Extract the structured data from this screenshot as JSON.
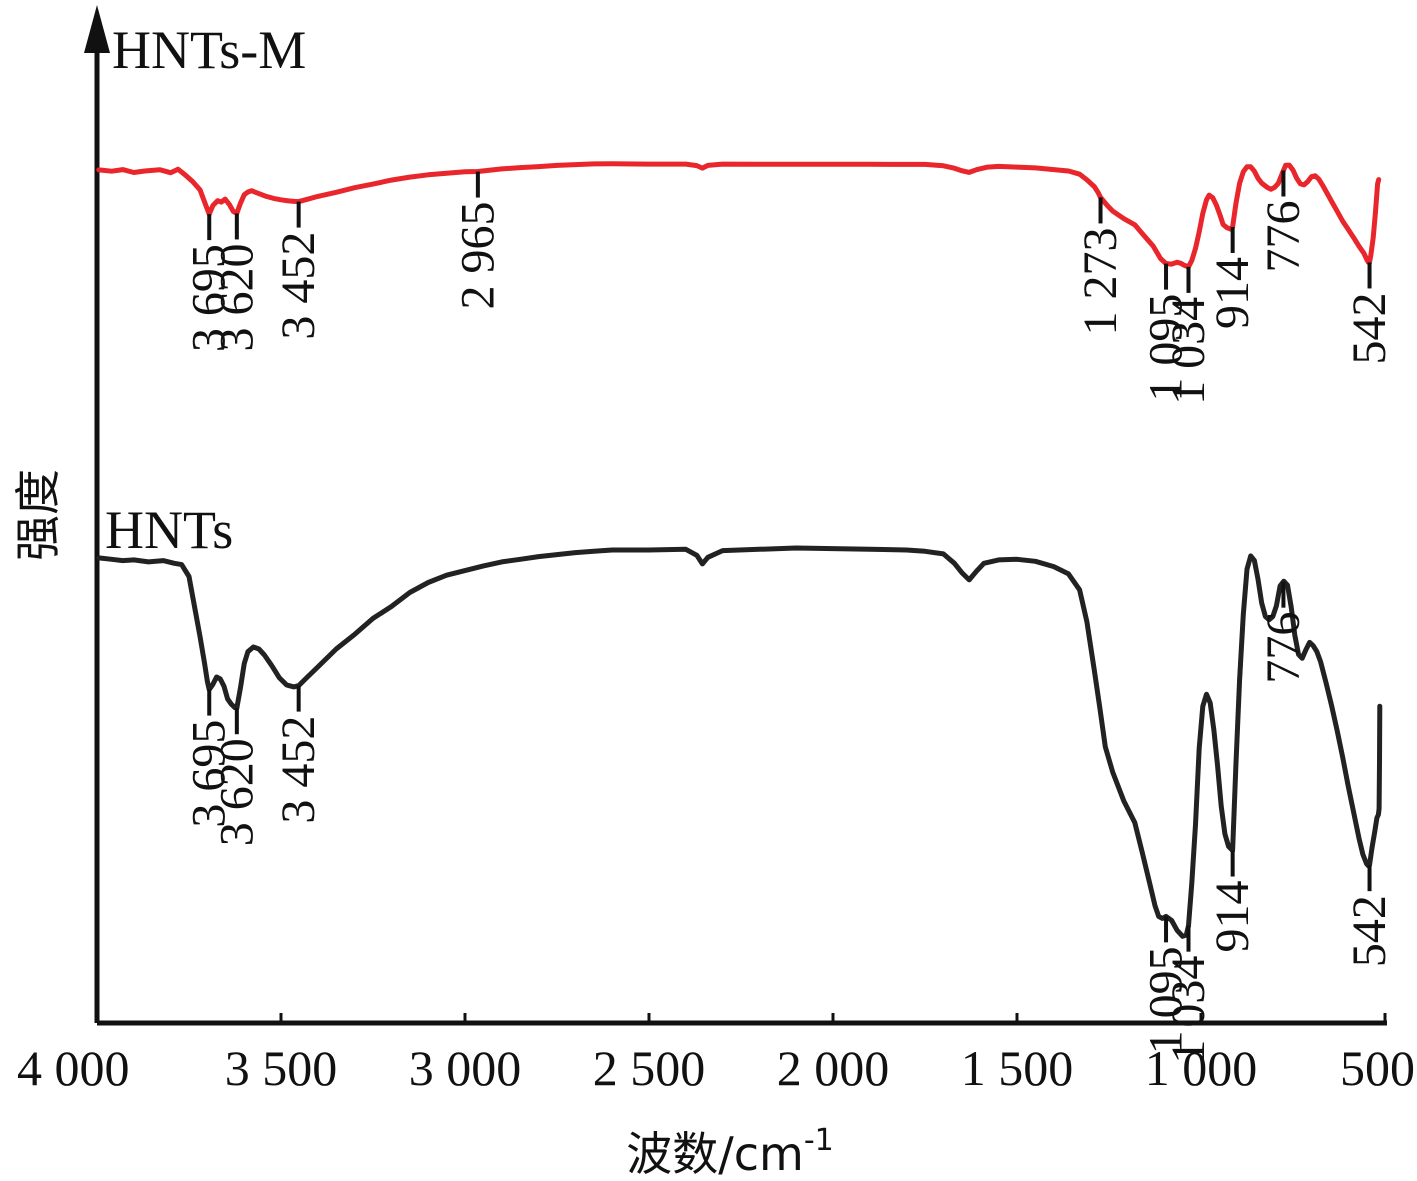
{
  "chart_data": {
    "type": "line",
    "xlabel": "波数/cm",
    "xlabel_sup": "-1",
    "ylabel": "强度",
    "xlim": [
      4000,
      500
    ],
    "x_reversed": true,
    "ylim": [
      0,
      100
    ],
    "y_ticks": "none",
    "grid": false,
    "x_ticks": [
      {
        "value": 4000,
        "label": "4 000"
      },
      {
        "value": 3500,
        "label": "3 500"
      },
      {
        "value": 3000,
        "label": "3 000"
      },
      {
        "value": 2500,
        "label": "2 500"
      },
      {
        "value": 2000,
        "label": "2 000"
      },
      {
        "value": 1500,
        "label": "1 500"
      },
      {
        "value": 1000,
        "label": "1 000"
      },
      {
        "value": 500,
        "label": "500"
      }
    ],
    "series": [
      {
        "name": "HNTs-M",
        "color": "#e8262b",
        "points": [
          [
            3995,
            93.1
          ],
          [
            3960,
            92.3
          ],
          [
            3930,
            93.3
          ],
          [
            3900,
            91.5
          ],
          [
            3870,
            92.4
          ],
          [
            3830,
            93.2
          ],
          [
            3800,
            91.4
          ],
          [
            3780,
            93.5
          ],
          [
            3760,
            90.0
          ],
          [
            3740,
            86.0
          ],
          [
            3720,
            81.0
          ],
          [
            3705,
            72.0
          ],
          [
            3695,
            66.3
          ],
          [
            3685,
            71.5
          ],
          [
            3672,
            74.4
          ],
          [
            3662,
            73.6
          ],
          [
            3652,
            75.4
          ],
          [
            3640,
            72.0
          ],
          [
            3630,
            68.0
          ],
          [
            3620,
            66.7
          ],
          [
            3610,
            73.0
          ],
          [
            3600,
            78.0
          ],
          [
            3590,
            79.7
          ],
          [
            3580,
            80.5
          ],
          [
            3570,
            79.6
          ],
          [
            3555,
            78.3
          ],
          [
            3540,
            77.0
          ],
          [
            3520,
            75.8
          ],
          [
            3500,
            75.0
          ],
          [
            3480,
            74.3
          ],
          [
            3465,
            74.0
          ],
          [
            3452,
            73.9
          ],
          [
            3430,
            75.2
          ],
          [
            3400,
            77.0
          ],
          [
            3350,
            79.5
          ],
          [
            3300,
            82.3
          ],
          [
            3250,
            84.5
          ],
          [
            3200,
            86.9
          ],
          [
            3150,
            88.7
          ],
          [
            3100,
            90.1
          ],
          [
            3050,
            91.1
          ],
          [
            3000,
            92.0
          ],
          [
            2965,
            92.1
          ],
          [
            2900,
            93.7
          ],
          [
            2850,
            94.5
          ],
          [
            2800,
            95.1
          ],
          [
            2750,
            95.8
          ],
          [
            2700,
            96.3
          ],
          [
            2650,
            96.7
          ],
          [
            2600,
            96.8
          ],
          [
            2500,
            96.6
          ],
          [
            2400,
            96.6
          ],
          [
            2370,
            95.7
          ],
          [
            2355,
            94.2
          ],
          [
            2340,
            95.8
          ],
          [
            2300,
            96.6
          ],
          [
            2200,
            96.5
          ],
          [
            2100,
            96.5
          ],
          [
            2000,
            96.5
          ],
          [
            1900,
            96.5
          ],
          [
            1800,
            96.4
          ],
          [
            1750,
            96.4
          ],
          [
            1700,
            95.6
          ],
          [
            1670,
            94.1
          ],
          [
            1650,
            92.6
          ],
          [
            1630,
            91.6
          ],
          [
            1610,
            93.2
          ],
          [
            1580,
            94.8
          ],
          [
            1550,
            95.2
          ],
          [
            1500,
            94.8
          ],
          [
            1450,
            94.3
          ],
          [
            1400,
            93.3
          ],
          [
            1360,
            92.4
          ],
          [
            1330,
            90.5
          ],
          [
            1310,
            87.1
          ],
          [
            1290,
            83.0
          ],
          [
            1280,
            79.5
          ],
          [
            1273,
            76.4
          ],
          [
            1255,
            71.6
          ],
          [
            1240,
            68.1
          ],
          [
            1210,
            63.6
          ],
          [
            1180,
            59.8
          ],
          [
            1160,
            54.6
          ],
          [
            1130,
            46.9
          ],
          [
            1110,
            39.4
          ],
          [
            1095,
            36.3
          ],
          [
            1080,
            36.0
          ],
          [
            1065,
            37.1
          ],
          [
            1055,
            36.5
          ],
          [
            1045,
            35.2
          ],
          [
            1034,
            34.3
          ],
          [
            1025,
            38.2
          ],
          [
            1015,
            45.5
          ],
          [
            1005,
            55.6
          ],
          [
            995,
            66.7
          ],
          [
            985,
            75.0
          ],
          [
            978,
            77.8
          ],
          [
            968,
            76.2
          ],
          [
            958,
            71.6
          ],
          [
            948,
            65.6
          ],
          [
            940,
            60.0
          ],
          [
            930,
            58.1
          ],
          [
            920,
            57.2
          ],
          [
            914,
            58.5
          ],
          [
            905,
            73.0
          ],
          [
            895,
            85.0
          ],
          [
            885,
            92.0
          ],
          [
            875,
            95.0
          ],
          [
            865,
            95.0
          ],
          [
            855,
            92.3
          ],
          [
            845,
            88.0
          ],
          [
            835,
            85.1
          ],
          [
            820,
            82.5
          ],
          [
            810,
            81.4
          ],
          [
            800,
            82.5
          ],
          [
            790,
            85.0
          ],
          [
            780,
            90.6
          ],
          [
            770,
            95.9
          ],
          [
            760,
            96.0
          ],
          [
            750,
            93.0
          ],
          [
            740,
            88.0
          ],
          [
            730,
            84.6
          ],
          [
            720,
            84.0
          ],
          [
            710,
            86.0
          ],
          [
            700,
            89.0
          ],
          [
            690,
            89.5
          ],
          [
            680,
            87.5
          ],
          [
            670,
            84.0
          ],
          [
            660,
            80.0
          ],
          [
            645,
            74.0
          ],
          [
            630,
            68.0
          ],
          [
            615,
            62.0
          ],
          [
            600,
            57.0
          ],
          [
            585,
            52.0
          ],
          [
            570,
            46.6
          ],
          [
            558,
            42.8
          ],
          [
            548,
            38.2
          ],
          [
            545,
            37.1
          ],
          [
            542,
            37.0
          ],
          [
            538,
            42.0
          ],
          [
            532,
            52.0
          ],
          [
            526,
            67.0
          ],
          [
            520,
            84.6
          ],
          [
            517,
            87.2
          ]
        ]
      },
      {
        "name": "HNTs",
        "color": "#222222",
        "points": [
          [
            3995,
            55.8
          ],
          [
            3960,
            55.6
          ],
          [
            3930,
            55.4
          ],
          [
            3900,
            55.5
          ],
          [
            3860,
            55.2
          ],
          [
            3820,
            55.4
          ],
          [
            3790,
            55.0
          ],
          [
            3770,
            54.8
          ],
          [
            3750,
            53.0
          ],
          [
            3735,
            48.5
          ],
          [
            3720,
            44.0
          ],
          [
            3708,
            40.0
          ],
          [
            3700,
            37.2
          ],
          [
            3695,
            36.0
          ],
          [
            3685,
            36.8
          ],
          [
            3675,
            37.9
          ],
          [
            3665,
            37.6
          ],
          [
            3655,
            36.5
          ],
          [
            3645,
            34.6
          ],
          [
            3635,
            33.8
          ],
          [
            3625,
            33.3
          ],
          [
            3620,
            33.2
          ],
          [
            3610,
            36.3
          ],
          [
            3600,
            39.9
          ],
          [
            3590,
            41.7
          ],
          [
            3575,
            42.4
          ],
          [
            3560,
            42.1
          ],
          [
            3545,
            41.2
          ],
          [
            3525,
            39.6
          ],
          [
            3505,
            37.8
          ],
          [
            3485,
            36.7
          ],
          [
            3465,
            36.4
          ],
          [
            3452,
            36.6
          ],
          [
            3430,
            37.8
          ],
          [
            3400,
            39.4
          ],
          [
            3350,
            42.1
          ],
          [
            3300,
            44.3
          ],
          [
            3250,
            46.7
          ],
          [
            3200,
            48.5
          ],
          [
            3150,
            50.6
          ],
          [
            3100,
            52.1
          ],
          [
            3050,
            53.2
          ],
          [
            3000,
            53.9
          ],
          [
            2950,
            54.6
          ],
          [
            2900,
            55.2
          ],
          [
            2850,
            55.6
          ],
          [
            2800,
            56.0
          ],
          [
            2750,
            56.3
          ],
          [
            2700,
            56.6
          ],
          [
            2650,
            56.8
          ],
          [
            2600,
            57.0
          ],
          [
            2500,
            57.0
          ],
          [
            2400,
            57.1
          ],
          [
            2370,
            56.2
          ],
          [
            2355,
            54.9
          ],
          [
            2340,
            55.9
          ],
          [
            2300,
            56.9
          ],
          [
            2200,
            57.1
          ],
          [
            2100,
            57.3
          ],
          [
            2000,
            57.2
          ],
          [
            1900,
            57.1
          ],
          [
            1800,
            57.0
          ],
          [
            1750,
            56.8
          ],
          [
            1700,
            56.4
          ],
          [
            1670,
            55.0
          ],
          [
            1650,
            53.6
          ],
          [
            1630,
            52.5
          ],
          [
            1610,
            53.8
          ],
          [
            1590,
            55.0
          ],
          [
            1550,
            55.5
          ],
          [
            1500,
            55.6
          ],
          [
            1450,
            55.3
          ],
          [
            1400,
            54.5
          ],
          [
            1360,
            53.4
          ],
          [
            1330,
            51.0
          ],
          [
            1310,
            46.2
          ],
          [
            1290,
            38.9
          ],
          [
            1275,
            33.3
          ],
          [
            1260,
            27.4
          ],
          [
            1240,
            23.6
          ],
          [
            1210,
            19.3
          ],
          [
            1180,
            16.0
          ],
          [
            1160,
            11.6
          ],
          [
            1140,
            7.0
          ],
          [
            1125,
            3.5
          ],
          [
            1115,
            1.9
          ],
          [
            1105,
            1.6
          ],
          [
            1095,
            1.9
          ],
          [
            1080,
            1.3
          ],
          [
            1065,
            -0.2
          ],
          [
            1050,
            -1.1
          ],
          [
            1040,
            -0.9
          ],
          [
            1034,
            0.5
          ],
          [
            1025,
            6.9
          ],
          [
            1015,
            15.7
          ],
          [
            1005,
            27.2
          ],
          [
            995,
            33.5
          ],
          [
            985,
            35.3
          ],
          [
            975,
            34.0
          ],
          [
            965,
            29.9
          ],
          [
            955,
            24.5
          ],
          [
            945,
            18.5
          ],
          [
            935,
            14.3
          ],
          [
            925,
            12.4
          ],
          [
            914,
            11.8
          ],
          [
            905,
            25.0
          ],
          [
            895,
            37.5
          ],
          [
            885,
            47.3
          ],
          [
            875,
            54.1
          ],
          [
            865,
            56.1
          ],
          [
            855,
            55.4
          ],
          [
            845,
            52.6
          ],
          [
            835,
            49.0
          ],
          [
            825,
            47.0
          ],
          [
            815,
            46.5
          ],
          [
            805,
            47.0
          ],
          [
            795,
            48.6
          ],
          [
            785,
            51.6
          ],
          [
            775,
            52.3
          ],
          [
            765,
            51.7
          ],
          [
            755,
            48.4
          ],
          [
            745,
            44.2
          ],
          [
            735,
            41.3
          ],
          [
            725,
            40.7
          ],
          [
            715,
            42.0
          ],
          [
            705,
            43.1
          ],
          [
            695,
            42.6
          ],
          [
            685,
            41.7
          ],
          [
            675,
            40.2
          ],
          [
            660,
            37.0
          ],
          [
            645,
            33.6
          ],
          [
            630,
            29.8
          ],
          [
            615,
            25.8
          ],
          [
            600,
            21.5
          ],
          [
            585,
            17.5
          ],
          [
            570,
            13.5
          ],
          [
            560,
            11.2
          ],
          [
            550,
            9.8
          ],
          [
            545,
            9.5
          ],
          [
            542,
            9.6
          ],
          [
            535,
            12.3
          ],
          [
            528,
            14.6
          ],
          [
            522,
            16.7
          ],
          [
            518,
            17.2
          ],
          [
            516,
            18.1
          ],
          [
            515,
            25.0
          ],
          [
            514,
            33.5
          ]
        ]
      }
    ],
    "annotations": [
      {
        "series": "HNTs-M",
        "x": 3695,
        "label": "3 695"
      },
      {
        "series": "HNTs-M",
        "x": 3620,
        "label": "3 620"
      },
      {
        "series": "HNTs-M",
        "x": 3452,
        "label": "3 452"
      },
      {
        "series": "HNTs-M",
        "x": 2965,
        "label": "2 965"
      },
      {
        "series": "HNTs-M",
        "x": 1273,
        "label": "1 273"
      },
      {
        "series": "HNTs-M",
        "x": 1095,
        "label": "1 095"
      },
      {
        "series": "HNTs-M",
        "x": 1034,
        "label": "1 034"
      },
      {
        "series": "HNTs-M",
        "x": 914,
        "label": "914"
      },
      {
        "series": "HNTs-M",
        "x": 776,
        "label": "776"
      },
      {
        "series": "HNTs-M",
        "x": 542,
        "label": "542"
      },
      {
        "series": "HNTs",
        "x": 3695,
        "label": "3 695"
      },
      {
        "series": "HNTs",
        "x": 3620,
        "label": "3 620"
      },
      {
        "series": "HNTs",
        "x": 3452,
        "label": "3 452"
      },
      {
        "series": "HNTs",
        "x": 1095,
        "label": "1 095"
      },
      {
        "series": "HNTs",
        "x": 1034,
        "label": "1 034"
      },
      {
        "series": "HNTs",
        "x": 914,
        "label": "914"
      },
      {
        "series": "HNTs",
        "x": 776,
        "label": "776"
      },
      {
        "series": "HNTs",
        "x": 542,
        "label": "542"
      }
    ]
  }
}
